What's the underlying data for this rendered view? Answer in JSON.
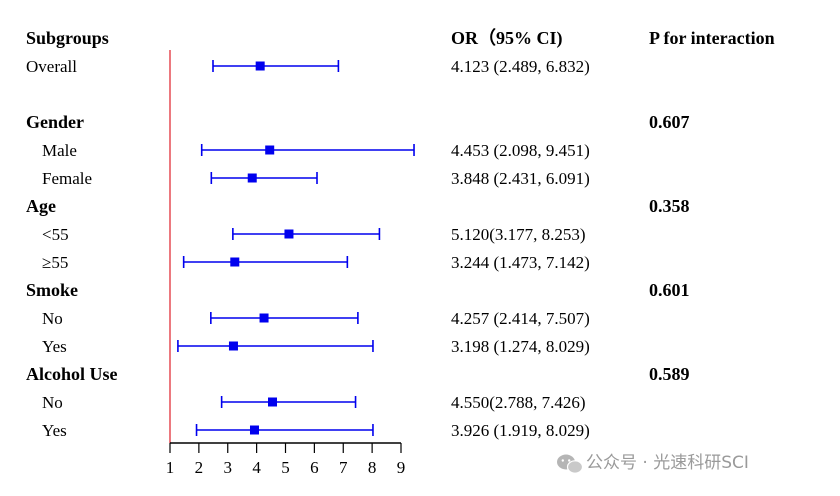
{
  "chart_data": {
    "type": "forest",
    "headers": {
      "subgroups": "Subgroups",
      "or_ci": "OR（95% CI)",
      "p_interaction": "P for interaction"
    },
    "reference_line": 1,
    "xlim": [
      1,
      9
    ],
    "x_ticks": [
      1,
      2,
      3,
      4,
      5,
      6,
      7,
      8,
      9
    ],
    "rows": [
      {
        "type": "item",
        "label": "Overall",
        "or": 4.123,
        "lo": 2.489,
        "hi": 6.832,
        "text": "4.123 (2.489, 6.832)"
      },
      {
        "type": "group",
        "label": "Gender",
        "p": "0.607"
      },
      {
        "type": "item",
        "label": "Male",
        "or": 4.453,
        "lo": 2.098,
        "hi": 9.451,
        "text": "4.453 (2.098, 9.451)"
      },
      {
        "type": "item",
        "label": "Female",
        "or": 3.848,
        "lo": 2.431,
        "hi": 6.091,
        "text": "3.848 (2.431, 6.091)"
      },
      {
        "type": "group",
        "label": "Age",
        "p": "0.358"
      },
      {
        "type": "item",
        "label": "<55",
        "or": 5.12,
        "lo": 3.177,
        "hi": 8.253,
        "text": "5.120(3.177, 8.253)"
      },
      {
        "type": "item",
        "label": "≥55",
        "or": 3.244,
        "lo": 1.473,
        "hi": 7.142,
        "text": "3.244 (1.473, 7.142)"
      },
      {
        "type": "group",
        "label": "Smoke",
        "p": "0.601"
      },
      {
        "type": "item",
        "label": "No",
        "or": 4.257,
        "lo": 2.414,
        "hi": 7.507,
        "text": "4.257 (2.414, 7.507)"
      },
      {
        "type": "item",
        "label": "Yes",
        "or": 3.198,
        "lo": 1.274,
        "hi": 8.029,
        "text": "3.198 (1.274, 8.029)"
      },
      {
        "type": "group",
        "label": "Alcohol Use",
        "p": "0.589"
      },
      {
        "type": "item",
        "label": "No",
        "or": 4.55,
        "lo": 2.788,
        "hi": 7.426,
        "text": "4.550(2.788, 7.426)"
      },
      {
        "type": "item",
        "label": "Yes",
        "or": 3.926,
        "lo": 1.919,
        "hi": 8.029,
        "text": "3.926 (1.919, 8.029)"
      }
    ],
    "colors": {
      "marker": "#0000ee",
      "reference": "#e0202a",
      "axis": "#000000"
    }
  },
  "watermark": {
    "icon": "wechat-icon",
    "text": "公众号 · 光速科研SCI"
  }
}
